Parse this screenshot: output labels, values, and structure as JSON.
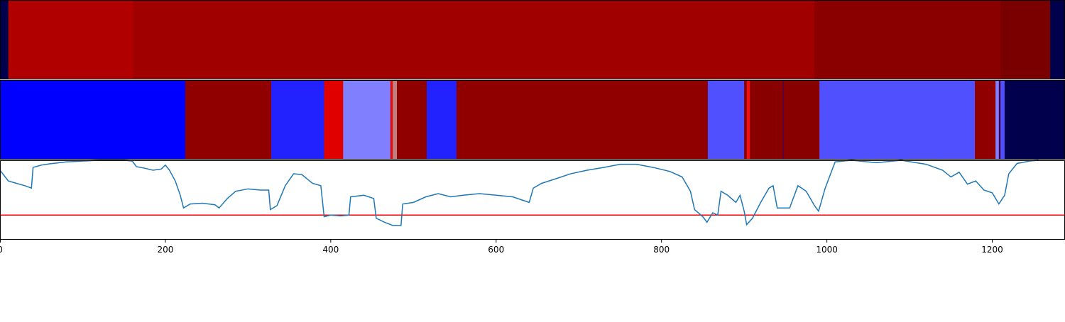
{
  "chart_data": [
    {
      "type": "bands",
      "xlim": [
        0,
        1288
      ],
      "segments": [
        {
          "start": 0,
          "end": 10,
          "color": "#00004c"
        },
        {
          "start": 10,
          "end": 161,
          "color": "#b00000"
        },
        {
          "start": 161,
          "end": 985,
          "color": "#a00000"
        },
        {
          "start": 985,
          "end": 1210,
          "color": "#8a0000"
        },
        {
          "start": 1210,
          "end": 1270,
          "color": "#7a0000"
        },
        {
          "start": 1270,
          "end": 1288,
          "color": "#00004c"
        }
      ]
    },
    {
      "type": "bands",
      "xlim": [
        0,
        1288
      ],
      "segments": [
        {
          "start": 0,
          "end": 224,
          "color": "#0000ff"
        },
        {
          "start": 224,
          "end": 328,
          "color": "#900000"
        },
        {
          "start": 328,
          "end": 392,
          "color": "#2222ff"
        },
        {
          "start": 392,
          "end": 415,
          "color": "#e00000"
        },
        {
          "start": 415,
          "end": 472,
          "color": "#8080ff"
        },
        {
          "start": 472,
          "end": 475,
          "color": "#e01010"
        },
        {
          "start": 475,
          "end": 480,
          "color": "#c08080"
        },
        {
          "start": 480,
          "end": 516,
          "color": "#900000"
        },
        {
          "start": 516,
          "end": 552,
          "color": "#2222ff"
        },
        {
          "start": 552,
          "end": 856,
          "color": "#900000"
        },
        {
          "start": 856,
          "end": 900,
          "color": "#5050ff"
        },
        {
          "start": 900,
          "end": 903,
          "color": "#880000"
        },
        {
          "start": 903,
          "end": 907,
          "color": "#f01010"
        },
        {
          "start": 907,
          "end": 947,
          "color": "#880000"
        },
        {
          "start": 947,
          "end": 948,
          "color": "#400060"
        },
        {
          "start": 948,
          "end": 991,
          "color": "#880000"
        },
        {
          "start": 991,
          "end": 1179,
          "color": "#5050ff"
        },
        {
          "start": 1179,
          "end": 1204,
          "color": "#900000"
        },
        {
          "start": 1204,
          "end": 1208,
          "color": "#8080ff"
        },
        {
          "start": 1208,
          "end": 1210,
          "color": "#400040"
        },
        {
          "start": 1210,
          "end": 1215,
          "color": "#5050ff"
        },
        {
          "start": 1215,
          "end": 1288,
          "color": "#00004c"
        }
      ]
    },
    {
      "type": "line",
      "xlim": [
        0,
        1288
      ],
      "ylim": [
        0,
        1
      ],
      "xticks": [
        0,
        200,
        400,
        600,
        800,
        1000,
        1200
      ],
      "hline": {
        "value": 0.31,
        "color": "#ff0000"
      },
      "x": [
        0,
        10,
        20,
        30,
        38,
        40,
        50,
        60,
        80,
        100,
        120,
        150,
        160,
        165,
        175,
        185,
        195,
        200,
        205,
        212,
        218,
        222,
        230,
        245,
        260,
        265,
        275,
        285,
        300,
        315,
        325,
        327,
        335,
        345,
        355,
        365,
        378,
        388,
        392,
        400,
        412,
        422,
        424,
        440,
        452,
        455,
        465,
        475,
        485,
        487,
        500,
        515,
        530,
        545,
        560,
        580,
        600,
        620,
        640,
        645,
        655,
        670,
        690,
        710,
        730,
        750,
        770,
        790,
        810,
        825,
        835,
        840,
        850,
        855,
        862,
        868,
        872,
        880,
        890,
        895,
        900,
        903,
        910,
        920,
        930,
        935,
        940,
        955,
        965,
        975,
        985,
        990,
        998,
        1010,
        1030,
        1060,
        1090,
        1120,
        1140,
        1150,
        1160,
        1170,
        1180,
        1190,
        1200,
        1208,
        1215,
        1220,
        1230,
        1245,
        1256
      ],
      "series": [
        {
          "color": "#1f77b4",
          "values": [
            0.875,
            0.74,
            0.71,
            0.68,
            0.65,
            0.91,
            0.94,
            0.955,
            0.98,
            0.99,
            1.0,
            1.0,
            0.99,
            0.92,
            0.9,
            0.875,
            0.89,
            0.94,
            0.875,
            0.74,
            0.56,
            0.4,
            0.45,
            0.46,
            0.44,
            0.4,
            0.52,
            0.61,
            0.64,
            0.625,
            0.625,
            0.38,
            0.43,
            0.68,
            0.83,
            0.82,
            0.71,
            0.68,
            0.29,
            0.31,
            0.3,
            0.31,
            0.54,
            0.56,
            0.52,
            0.27,
            0.22,
            0.18,
            0.18,
            0.45,
            0.47,
            0.54,
            0.58,
            0.54,
            0.56,
            0.58,
            0.56,
            0.54,
            0.47,
            0.65,
            0.71,
            0.76,
            0.83,
            0.875,
            0.91,
            0.95,
            0.95,
            0.91,
            0.86,
            0.79,
            0.61,
            0.38,
            0.29,
            0.22,
            0.34,
            0.31,
            0.61,
            0.56,
            0.47,
            0.56,
            0.36,
            0.19,
            0.27,
            0.47,
            0.65,
            0.68,
            0.4,
            0.4,
            0.68,
            0.61,
            0.43,
            0.36,
            0.65,
            0.98,
            1.0,
            0.97,
            1.0,
            0.95,
            0.875,
            0.79,
            0.85,
            0.7,
            0.74,
            0.625,
            0.59,
            0.45,
            0.56,
            0.83,
            0.96,
            0.99,
            1.0
          ]
        }
      ]
    }
  ]
}
